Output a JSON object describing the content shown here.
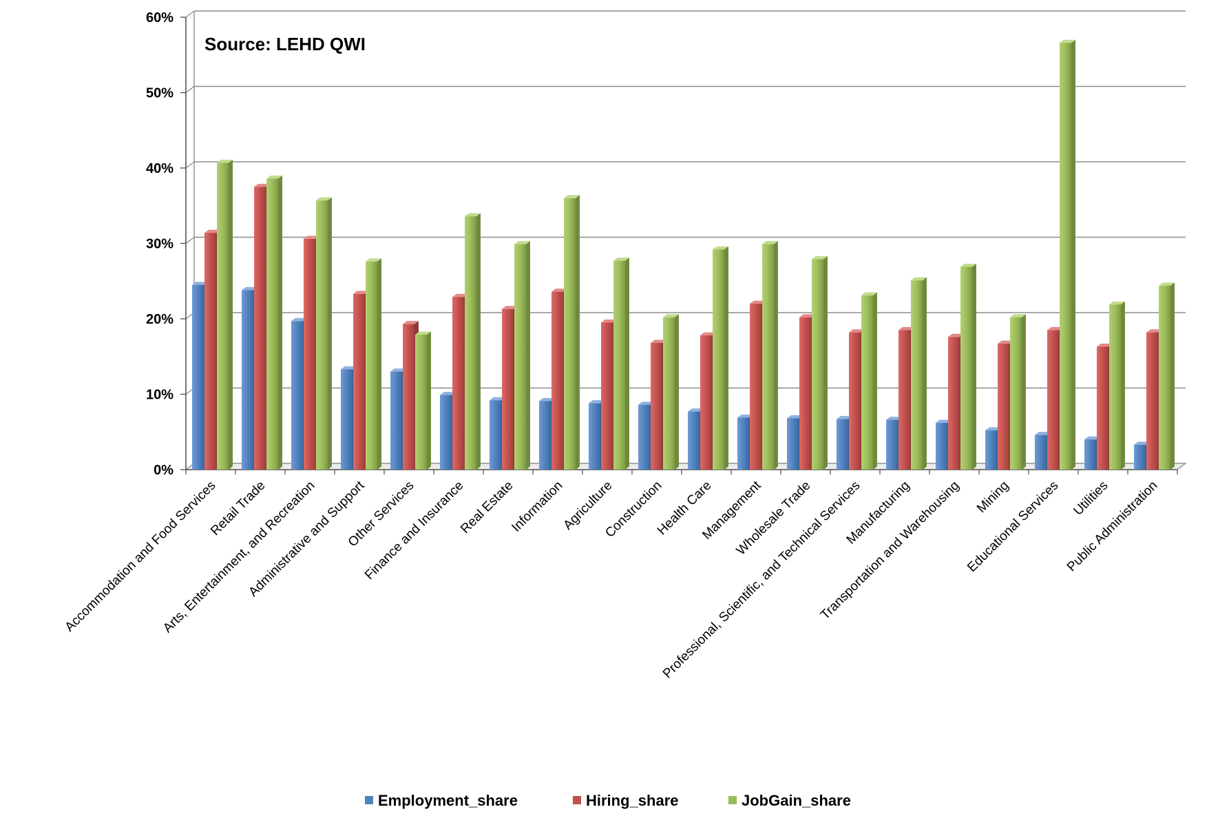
{
  "chart_data": {
    "type": "bar",
    "annotation": "Source: LEHD QWI",
    "ylim": [
      0,
      60
    ],
    "yticks": [
      "0%",
      "10%",
      "20%",
      "30%",
      "40%",
      "50%",
      "60%"
    ],
    "grid": true,
    "legend_position": "bottom",
    "categories": [
      "Accommodation and Food Services",
      "Retail Trade",
      "Arts, Entertainment, and Recreation",
      "Administrative and Support",
      "Other Services",
      "Finance and Insurance",
      "Real Estate",
      "Information",
      "Agriculture",
      "Construction",
      "Health Care",
      "Management",
      "Wholesale Trade",
      "Professional, Scientific, and Technical Services",
      "Manufacturing",
      "Transportation and Warehousing",
      "Mining",
      "Educational Services",
      "Utilities",
      "Public Administration"
    ],
    "series": [
      {
        "name": "Employment_share",
        "color": "#4f81bd",
        "values": [
          24.5,
          23.8,
          19.7,
          13.3,
          13.0,
          9.9,
          9.2,
          9.1,
          8.8,
          8.6,
          7.7,
          6.9,
          6.8,
          6.7,
          6.6,
          6.2,
          5.2,
          4.6,
          4.0,
          3.3
        ]
      },
      {
        "name": "Hiring_share",
        "color": "#c0504d",
        "values": [
          31.4,
          37.5,
          30.6,
          23.3,
          19.3,
          22.9,
          21.3,
          23.6,
          19.5,
          16.8,
          17.8,
          22.0,
          20.2,
          18.2,
          18.5,
          17.6,
          16.7,
          18.5,
          16.3,
          18.2
        ]
      },
      {
        "name": "JobGain_share",
        "color": "#9bbb59",
        "values": [
          40.7,
          38.6,
          35.7,
          27.6,
          17.9,
          33.6,
          29.9,
          36.0,
          27.7,
          20.2,
          29.2,
          29.9,
          27.9,
          23.1,
          25.1,
          26.9,
          20.2,
          56.6,
          21.9,
          24.4
        ]
      }
    ]
  }
}
